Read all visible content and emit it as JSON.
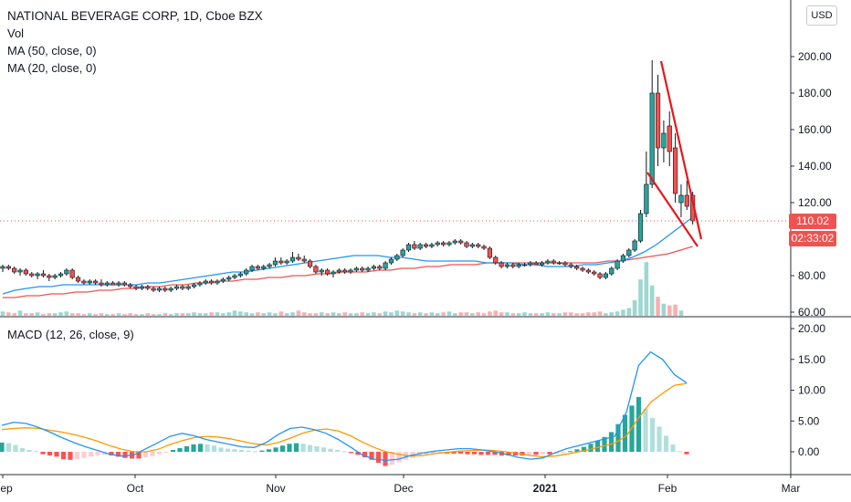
{
  "header": {
    "title": "NATIONAL BEVERAGE CORP, 1D, Cboe BZX",
    "indicators": [
      "Vol",
      "MA (50, close, 0)",
      "MA (20, close, 0)"
    ],
    "macd_label": "MACD (12, 26, close, 9)",
    "currency": "USD"
  },
  "badges": {
    "price": "110.02",
    "countdown": "02:33:02"
  },
  "colors": {
    "up": "#26a69a",
    "down": "#ef5350",
    "ma50": "#ef5350",
    "ma20": "#2196f3",
    "macd": "#2196f3",
    "signal": "#ff9800",
    "trendline": "#e8161b"
  },
  "chart_data": [
    {
      "type": "candlestick",
      "title": "NATIONAL BEVERAGE CORP, 1D, Cboe BZX",
      "price_axis_ticks": [
        "60.00",
        "80.00",
        "100.00",
        "120.00",
        "140.00",
        "160.00",
        "180.00",
        "200.00"
      ],
      "ylim": [
        60,
        200
      ],
      "time_axis_ticks": [
        "Sep",
        "Oct",
        "Nov",
        "Dec",
        "2021",
        "Feb",
        "Mar"
      ],
      "last_price": 110.02,
      "candles": [
        {
          "o": 84,
          "h": 86,
          "l": 82,
          "c": 85
        },
        {
          "o": 85,
          "h": 86,
          "l": 83,
          "c": 84
        },
        {
          "o": 84,
          "h": 85,
          "l": 81,
          "c": 82
        },
        {
          "o": 82,
          "h": 84,
          "l": 80,
          "c": 83
        },
        {
          "o": 83,
          "h": 84,
          "l": 80,
          "c": 81
        },
        {
          "o": 81,
          "h": 82,
          "l": 79,
          "c": 80
        },
        {
          "o": 80,
          "h": 82,
          "l": 78,
          "c": 81
        },
        {
          "o": 81,
          "h": 83,
          "l": 79,
          "c": 80
        },
        {
          "o": 80,
          "h": 81,
          "l": 77,
          "c": 79
        },
        {
          "o": 79,
          "h": 81,
          "l": 78,
          "c": 80
        },
        {
          "o": 80,
          "h": 82,
          "l": 79,
          "c": 81
        },
        {
          "o": 81,
          "h": 84,
          "l": 80,
          "c": 83
        },
        {
          "o": 83,
          "h": 84,
          "l": 78,
          "c": 79
        },
        {
          "o": 79,
          "h": 80,
          "l": 76,
          "c": 77
        },
        {
          "o": 77,
          "h": 78,
          "l": 75,
          "c": 76
        },
        {
          "o": 76,
          "h": 78,
          "l": 75,
          "c": 77
        },
        {
          "o": 77,
          "h": 78,
          "l": 75,
          "c": 76
        },
        {
          "o": 76,
          "h": 78,
          "l": 74,
          "c": 75
        },
        {
          "o": 75,
          "h": 77,
          "l": 74,
          "c": 76
        },
        {
          "o": 76,
          "h": 77,
          "l": 75,
          "c": 75
        },
        {
          "o": 75,
          "h": 77,
          "l": 74,
          "c": 76
        },
        {
          "o": 76,
          "h": 77,
          "l": 74,
          "c": 75
        },
        {
          "o": 75,
          "h": 76,
          "l": 73,
          "c": 74
        },
        {
          "o": 74,
          "h": 75,
          "l": 72,
          "c": 73
        },
        {
          "o": 73,
          "h": 75,
          "l": 72,
          "c": 74
        },
        {
          "o": 74,
          "h": 75,
          "l": 72,
          "c": 73
        },
        {
          "o": 73,
          "h": 74,
          "l": 71,
          "c": 72
        },
        {
          "o": 72,
          "h": 74,
          "l": 71,
          "c": 73
        },
        {
          "o": 73,
          "h": 74,
          "l": 71,
          "c": 72
        },
        {
          "o": 72,
          "h": 74,
          "l": 71,
          "c": 73
        },
        {
          "o": 73,
          "h": 75,
          "l": 72,
          "c": 74
        },
        {
          "o": 74,
          "h": 75,
          "l": 72,
          "c": 73
        },
        {
          "o": 73,
          "h": 75,
          "l": 72,
          "c": 74
        },
        {
          "o": 74,
          "h": 76,
          "l": 73,
          "c": 75
        },
        {
          "o": 75,
          "h": 77,
          "l": 74,
          "c": 76
        },
        {
          "o": 76,
          "h": 78,
          "l": 75,
          "c": 77
        },
        {
          "o": 77,
          "h": 78,
          "l": 75,
          "c": 76
        },
        {
          "o": 76,
          "h": 78,
          "l": 75,
          "c": 77
        },
        {
          "o": 77,
          "h": 79,
          "l": 76,
          "c": 78
        },
        {
          "o": 78,
          "h": 80,
          "l": 77,
          "c": 79
        },
        {
          "o": 79,
          "h": 81,
          "l": 78,
          "c": 80
        },
        {
          "o": 80,
          "h": 82,
          "l": 79,
          "c": 81
        },
        {
          "o": 81,
          "h": 84,
          "l": 80,
          "c": 83
        },
        {
          "o": 83,
          "h": 86,
          "l": 82,
          "c": 85
        },
        {
          "o": 85,
          "h": 86,
          "l": 83,
          "c": 84
        },
        {
          "o": 84,
          "h": 86,
          "l": 83,
          "c": 85
        },
        {
          "o": 85,
          "h": 87,
          "l": 84,
          "c": 86
        },
        {
          "o": 86,
          "h": 90,
          "l": 85,
          "c": 88
        },
        {
          "o": 88,
          "h": 90,
          "l": 86,
          "c": 87
        },
        {
          "o": 87,
          "h": 89,
          "l": 86,
          "c": 88
        },
        {
          "o": 88,
          "h": 93,
          "l": 87,
          "c": 90
        },
        {
          "o": 90,
          "h": 92,
          "l": 88,
          "c": 89
        },
        {
          "o": 89,
          "h": 91,
          "l": 87,
          "c": 88
        },
        {
          "o": 88,
          "h": 89,
          "l": 84,
          "c": 85
        },
        {
          "o": 85,
          "h": 86,
          "l": 81,
          "c": 82
        },
        {
          "o": 82,
          "h": 84,
          "l": 80,
          "c": 83
        },
        {
          "o": 83,
          "h": 84,
          "l": 80,
          "c": 81
        },
        {
          "o": 81,
          "h": 83,
          "l": 79,
          "c": 82
        },
        {
          "o": 82,
          "h": 84,
          "l": 81,
          "c": 83
        },
        {
          "o": 83,
          "h": 84,
          "l": 81,
          "c": 82
        },
        {
          "o": 82,
          "h": 84,
          "l": 81,
          "c": 83
        },
        {
          "o": 83,
          "h": 85,
          "l": 82,
          "c": 84
        },
        {
          "o": 84,
          "h": 85,
          "l": 82,
          "c": 83
        },
        {
          "o": 83,
          "h": 85,
          "l": 82,
          "c": 84
        },
        {
          "o": 84,
          "h": 86,
          "l": 83,
          "c": 85
        },
        {
          "o": 85,
          "h": 86,
          "l": 83,
          "c": 84
        },
        {
          "o": 84,
          "h": 88,
          "l": 83,
          "c": 87
        },
        {
          "o": 87,
          "h": 90,
          "l": 86,
          "c": 89
        },
        {
          "o": 89,
          "h": 92,
          "l": 88,
          "c": 91
        },
        {
          "o": 91,
          "h": 95,
          "l": 90,
          "c": 94
        },
        {
          "o": 94,
          "h": 98,
          "l": 93,
          "c": 97
        },
        {
          "o": 97,
          "h": 99,
          "l": 94,
          "c": 95
        },
        {
          "o": 95,
          "h": 98,
          "l": 94,
          "c": 97
        },
        {
          "o": 97,
          "h": 98,
          "l": 95,
          "c": 96
        },
        {
          "o": 96,
          "h": 98,
          "l": 95,
          "c": 97
        },
        {
          "o": 97,
          "h": 99,
          "l": 96,
          "c": 98
        },
        {
          "o": 98,
          "h": 99,
          "l": 96,
          "c": 97
        },
        {
          "o": 97,
          "h": 99,
          "l": 96,
          "c": 98
        },
        {
          "o": 98,
          "h": 100,
          "l": 97,
          "c": 99
        },
        {
          "o": 99,
          "h": 100,
          "l": 97,
          "c": 98
        },
        {
          "o": 98,
          "h": 99,
          "l": 95,
          "c": 96
        },
        {
          "o": 96,
          "h": 98,
          "l": 95,
          "c": 97
        },
        {
          "o": 97,
          "h": 98,
          "l": 95,
          "c": 96
        },
        {
          "o": 96,
          "h": 97,
          "l": 94,
          "c": 95
        },
        {
          "o": 95,
          "h": 96,
          "l": 89,
          "c": 90
        },
        {
          "o": 90,
          "h": 91,
          "l": 86,
          "c": 87
        },
        {
          "o": 87,
          "h": 88,
          "l": 84,
          "c": 85
        },
        {
          "o": 85,
          "h": 87,
          "l": 84,
          "c": 86
        },
        {
          "o": 86,
          "h": 87,
          "l": 84,
          "c": 85
        },
        {
          "o": 85,
          "h": 87,
          "l": 84,
          "c": 86
        },
        {
          "o": 86,
          "h": 87,
          "l": 85,
          "c": 86
        },
        {
          "o": 86,
          "h": 88,
          "l": 85,
          "c": 87
        },
        {
          "o": 87,
          "h": 88,
          "l": 86,
          "c": 86
        },
        {
          "o": 86,
          "h": 88,
          "l": 85,
          "c": 87
        },
        {
          "o": 87,
          "h": 89,
          "l": 86,
          "c": 88
        },
        {
          "o": 88,
          "h": 89,
          "l": 86,
          "c": 87
        },
        {
          "o": 87,
          "h": 88,
          "l": 86,
          "c": 87
        },
        {
          "o": 87,
          "h": 88,
          "l": 85,
          "c": 86
        },
        {
          "o": 86,
          "h": 87,
          "l": 84,
          "c": 85
        },
        {
          "o": 85,
          "h": 86,
          "l": 83,
          "c": 84
        },
        {
          "o": 84,
          "h": 85,
          "l": 82,
          "c": 83
        },
        {
          "o": 83,
          "h": 84,
          "l": 81,
          "c": 82
        },
        {
          "o": 82,
          "h": 83,
          "l": 80,
          "c": 81
        },
        {
          "o": 81,
          "h": 82,
          "l": 78,
          "c": 79
        },
        {
          "o": 79,
          "h": 82,
          "l": 78,
          "c": 81
        },
        {
          "o": 81,
          "h": 85,
          "l": 80,
          "c": 84
        },
        {
          "o": 84,
          "h": 89,
          "l": 83,
          "c": 88
        },
        {
          "o": 88,
          "h": 92,
          "l": 87,
          "c": 91
        },
        {
          "o": 91,
          "h": 95,
          "l": 90,
          "c": 94
        },
        {
          "o": 94,
          "h": 100,
          "l": 93,
          "c": 99
        },
        {
          "o": 99,
          "h": 116,
          "l": 98,
          "c": 114
        },
        {
          "o": 114,
          "h": 148,
          "l": 112,
          "c": 130
        },
        {
          "o": 130,
          "h": 198,
          "l": 128,
          "c": 180
        },
        {
          "o": 180,
          "h": 190,
          "l": 140,
          "c": 150
        },
        {
          "o": 150,
          "h": 165,
          "l": 142,
          "c": 158
        },
        {
          "o": 162,
          "h": 170,
          "l": 140,
          "c": 148
        },
        {
          "o": 150,
          "h": 158,
          "l": 120,
          "c": 125
        },
        {
          "o": 120,
          "h": 130,
          "l": 112,
          "c": 124
        },
        {
          "o": 124,
          "h": 132,
          "l": 116,
          "c": 118
        },
        {
          "o": 124,
          "h": 126,
          "l": 108,
          "c": 110.02
        }
      ],
      "ma20": [
        70,
        72,
        73,
        74,
        74,
        75,
        75,
        75,
        75,
        75,
        75,
        75,
        76,
        76,
        77,
        78,
        79,
        80,
        81,
        82,
        82,
        83,
        84,
        85,
        86,
        87,
        88,
        89,
        90,
        91,
        91,
        91,
        90,
        90,
        89,
        88,
        88,
        88,
        88,
        88,
        87,
        87,
        87,
        86,
        86,
        85,
        85,
        85,
        86,
        86,
        87,
        88,
        90,
        93,
        97,
        102,
        107,
        112
      ],
      "ma50": [
        68,
        68,
        69,
        69,
        70,
        70,
        71,
        71,
        72,
        72,
        73,
        73,
        74,
        74,
        75,
        75,
        76,
        76,
        77,
        77,
        78,
        78,
        79,
        79,
        80,
        80,
        81,
        81,
        82,
        82,
        82,
        83,
        83,
        84,
        84,
        85,
        85,
        86,
        86,
        86,
        87,
        87,
        87,
        87,
        87,
        87,
        87,
        87,
        87,
        87,
        88,
        88,
        89,
        90,
        91,
        92,
        94,
        96
      ],
      "volume": [
        5,
        4,
        3,
        6,
        3,
        3,
        4,
        2,
        3,
        3,
        4,
        5,
        3,
        3,
        2,
        3,
        2,
        3,
        2,
        2,
        3,
        2,
        3,
        2,
        2,
        3,
        2,
        2,
        3,
        2,
        3,
        3,
        3,
        4,
        3,
        3,
        4,
        4,
        3,
        4,
        6,
        5,
        4,
        3,
        4,
        3,
        4,
        3,
        5,
        3,
        4,
        6,
        4,
        3,
        3,
        4,
        3,
        4,
        3,
        4,
        3,
        3,
        4,
        3,
        4,
        3,
        5,
        4,
        6,
        5,
        4,
        3,
        4,
        3,
        4,
        3,
        4,
        5,
        3,
        4,
        4,
        3,
        4,
        3,
        5,
        6,
        4,
        4,
        3,
        3,
        4,
        3,
        3,
        3,
        4,
        3,
        3,
        4,
        4,
        3,
        3,
        4,
        4,
        5,
        3,
        4,
        5,
        7,
        9,
        18,
        42,
        62,
        35,
        22,
        14,
        12,
        13,
        6
      ]
    },
    {
      "type": "macd",
      "title": "MACD (12, 26, close, 9)",
      "y_axis_ticks": [
        "0.00",
        "5.00",
        "10.00",
        "15.00",
        "20.00"
      ],
      "ylim": [
        -2.5,
        20
      ],
      "macd": [
        4.3,
        4.8,
        4.6,
        4.0,
        3.2,
        2.3,
        1.5,
        0.8,
        0.2,
        -0.4,
        -0.7,
        -0.5,
        0.5,
        1.5,
        2.5,
        3.0,
        2.6,
        2.0,
        1.6,
        1.2,
        0.8,
        0.7,
        1.5,
        2.8,
        3.8,
        4.0,
        3.6,
        3.0,
        2.0,
        0.8,
        -0.5,
        -1.2,
        -1.4,
        -1.2,
        -0.6,
        -0.2,
        0.1,
        0.3,
        0.5,
        0.5,
        0.3,
        0.0,
        -0.4,
        -0.9,
        -1.2,
        -1.0,
        -0.2,
        0.5,
        1.0,
        1.5,
        2.0,
        2.5,
        6.5,
        14.0,
        16.2,
        15.0,
        12.5,
        11.2
      ],
      "signal": [
        3.6,
        3.8,
        3.9,
        3.8,
        3.5,
        3.2,
        2.8,
        2.3,
        1.7,
        1.0,
        0.4,
        0.0,
        0.0,
        0.4,
        1.2,
        1.8,
        2.3,
        2.5,
        2.4,
        2.1,
        1.7,
        1.3,
        1.1,
        1.5,
        2.2,
        3.0,
        3.5,
        3.7,
        3.4,
        2.6,
        1.6,
        0.7,
        0.0,
        -0.4,
        -0.7,
        -0.6,
        -0.3,
        -0.1,
        0.1,
        0.2,
        0.3,
        0.2,
        0.0,
        -0.3,
        -0.6,
        -0.8,
        -0.7,
        -0.4,
        0.0,
        0.4,
        0.9,
        1.4,
        2.6,
        5.5,
        8.0,
        9.5,
        10.8,
        11.1
      ],
      "histogram": [
        1.5,
        1.4,
        1.1,
        0.6,
        0.3,
        0.1,
        -0.4,
        -0.6,
        -0.8,
        -1.2,
        -1.3,
        -1.2,
        -1.0,
        -0.8,
        -0.6,
        -0.5,
        -0.6,
        -0.8,
        -1.0,
        -1.1,
        -1.1,
        -0.9,
        -0.7,
        -0.4,
        -0.1,
        0.3,
        0.6,
        0.9,
        1.2,
        1.3,
        1.2,
        1.0,
        0.7,
        0.5,
        0.4,
        0.3,
        0.2,
        0.1,
        0.2,
        0.4,
        0.7,
        1.0,
        1.3,
        1.4,
        1.3,
        1.1,
        0.9,
        0.7,
        0.5,
        0.3,
        0.1,
        -0.2,
        -0.5,
        -0.9,
        -1.3,
        -1.8,
        -2.3,
        -2.1,
        -1.7,
        -1.3,
        -1.0,
        -0.7,
        -0.5,
        -0.4,
        -0.3,
        -0.3,
        -0.3,
        -0.3,
        -0.4,
        -0.4,
        -0.5,
        -0.5,
        -0.5,
        -0.6,
        -0.6,
        -0.6,
        -0.6,
        -0.5,
        -0.5,
        -0.4,
        -0.4,
        -0.3,
        -0.2,
        0.1,
        0.4,
        0.8,
        1.3,
        1.8,
        2.4,
        3.2,
        4.5,
        6.0,
        7.5,
        8.9,
        7.0,
        5.5,
        4.1,
        2.6,
        1.2,
        0.1,
        -0.4
      ]
    }
  ]
}
